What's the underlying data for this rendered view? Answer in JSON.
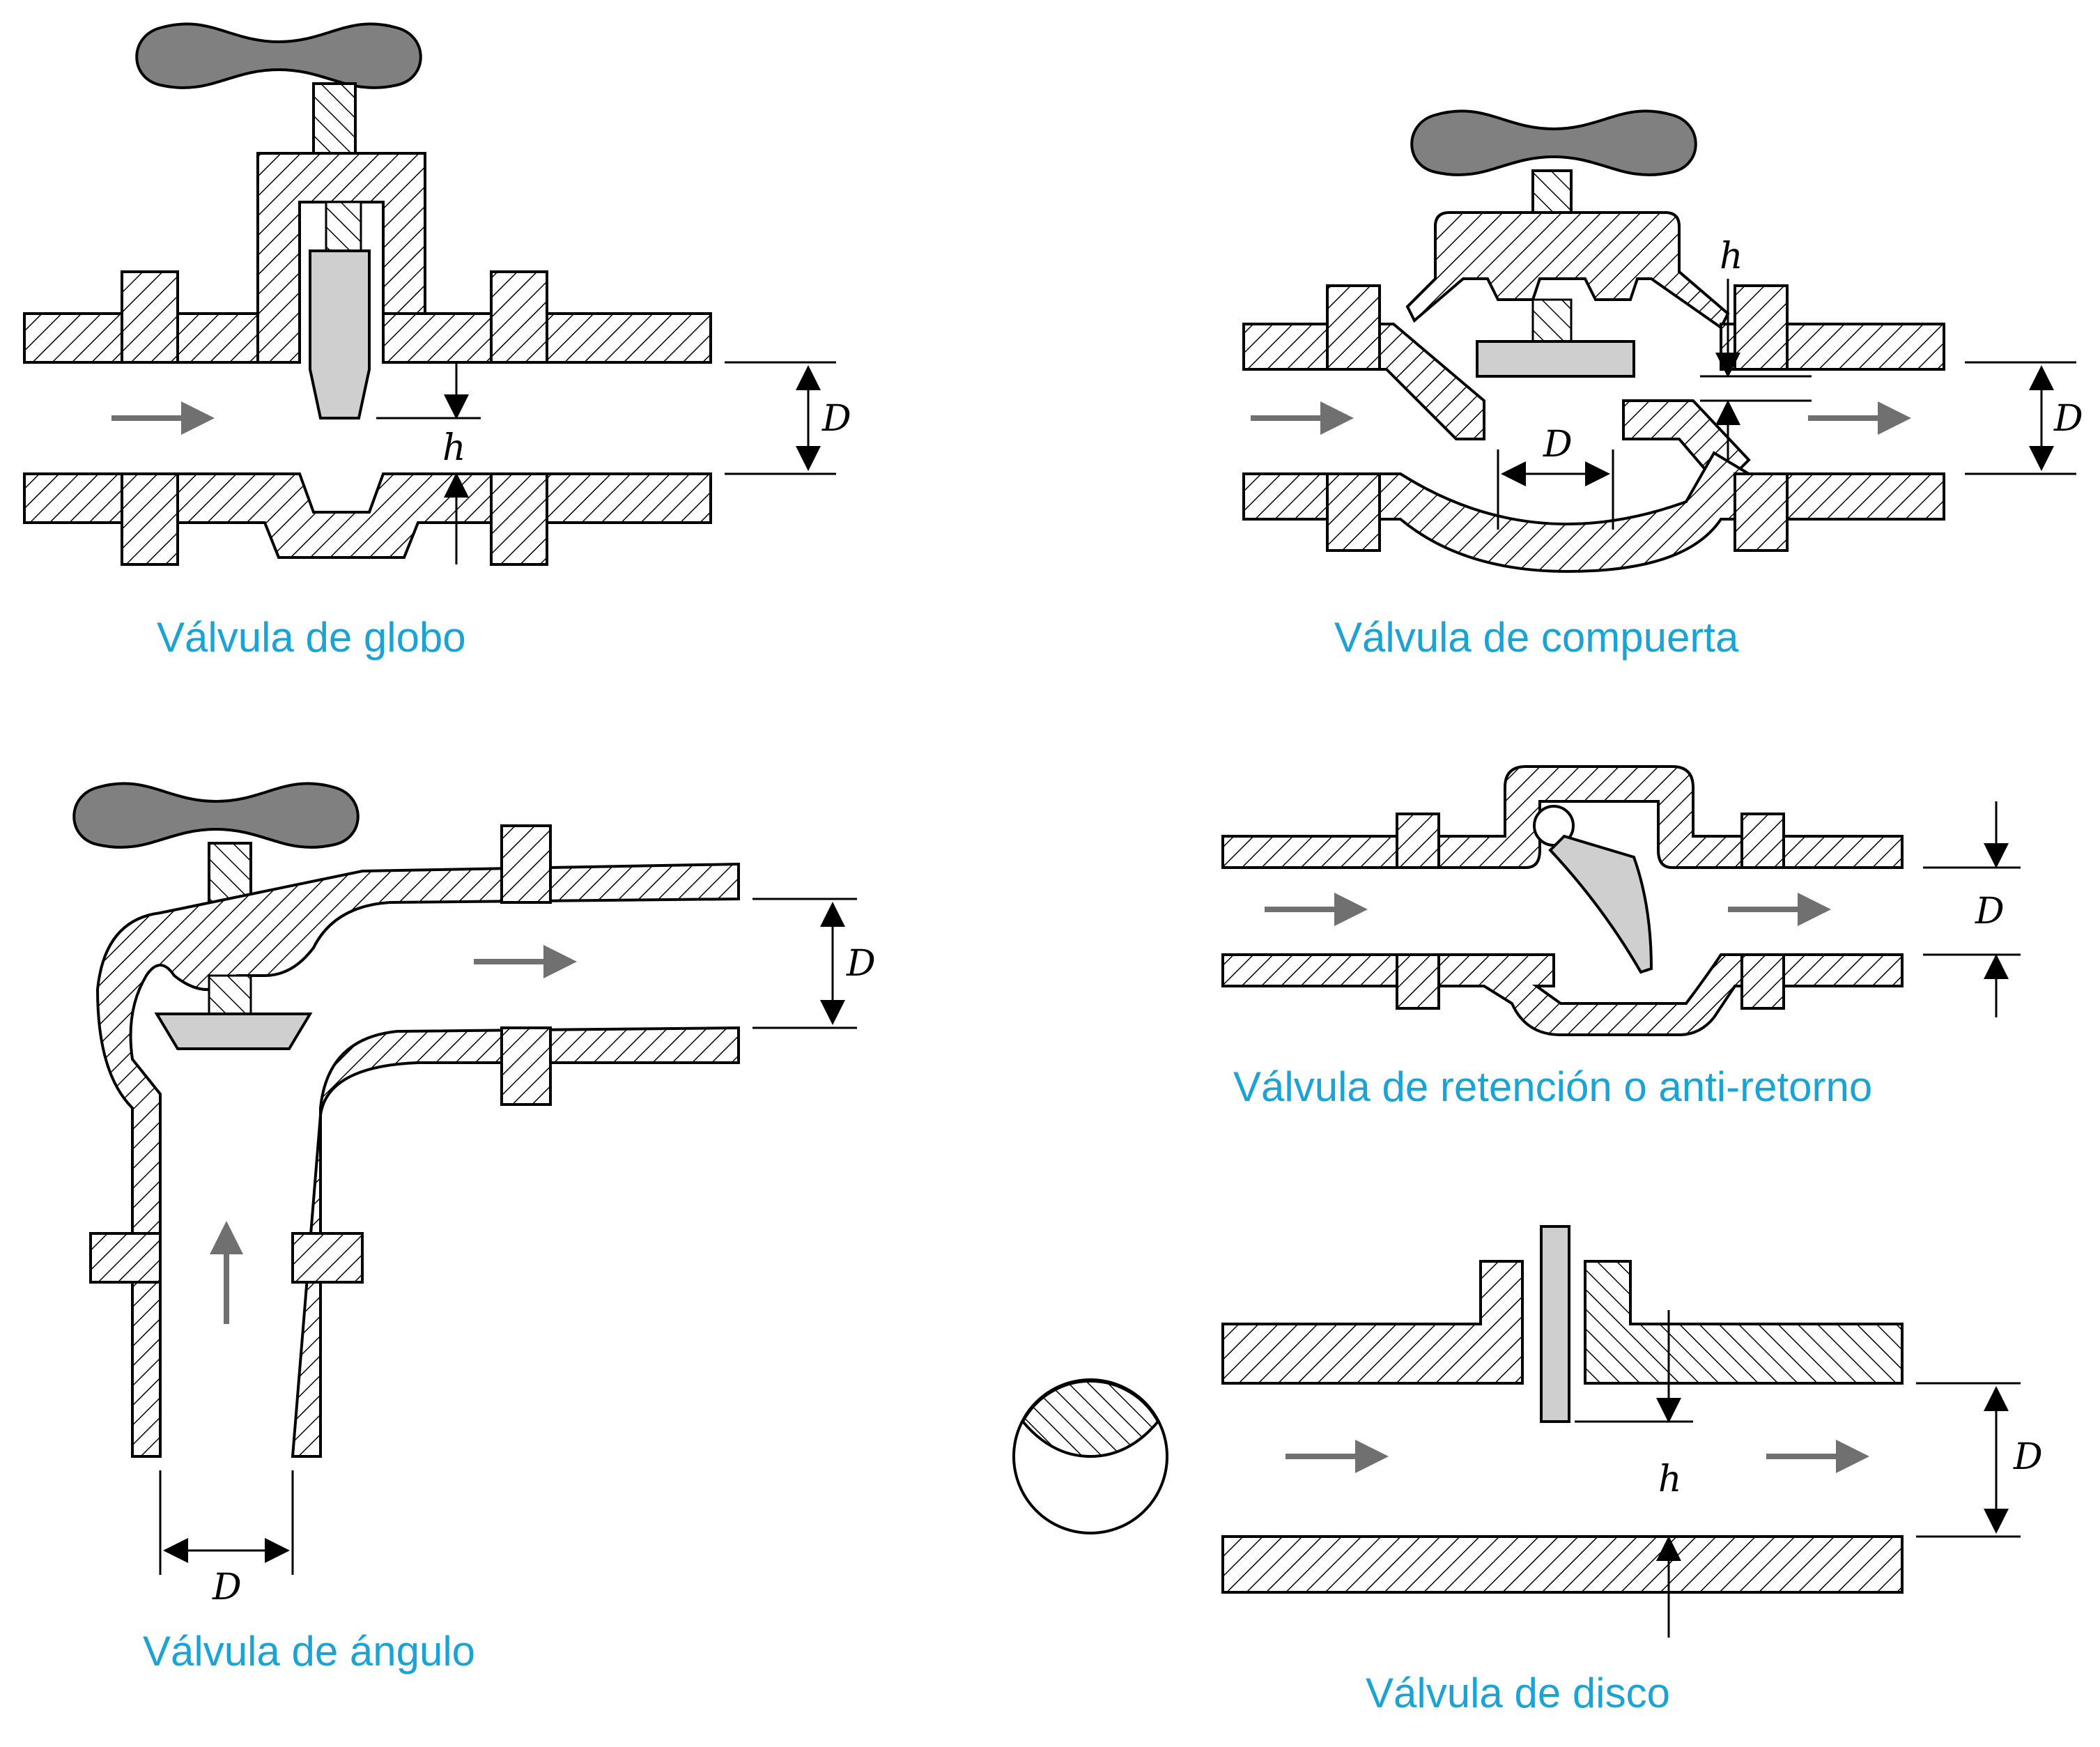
{
  "captions": {
    "globe": "Válvula de globo",
    "gate": "Válvula de compuerta",
    "angle": "Válvula de ángulo",
    "check": "Válvula de retención o anti-retorno",
    "disc": "Válvula de disco"
  },
  "dimension_labels": {
    "diameter": "D",
    "lift": "h"
  },
  "colors": {
    "caption": "#1aa3d4",
    "handle": "#808080",
    "valve_element": "#cfcfcf",
    "flow_arrow": "#707070",
    "outline": "#000000"
  },
  "icons": {
    "handle": "t-handle-icon",
    "flow": "flow-arrow-icon",
    "hatch": "hatched-section-pattern"
  }
}
